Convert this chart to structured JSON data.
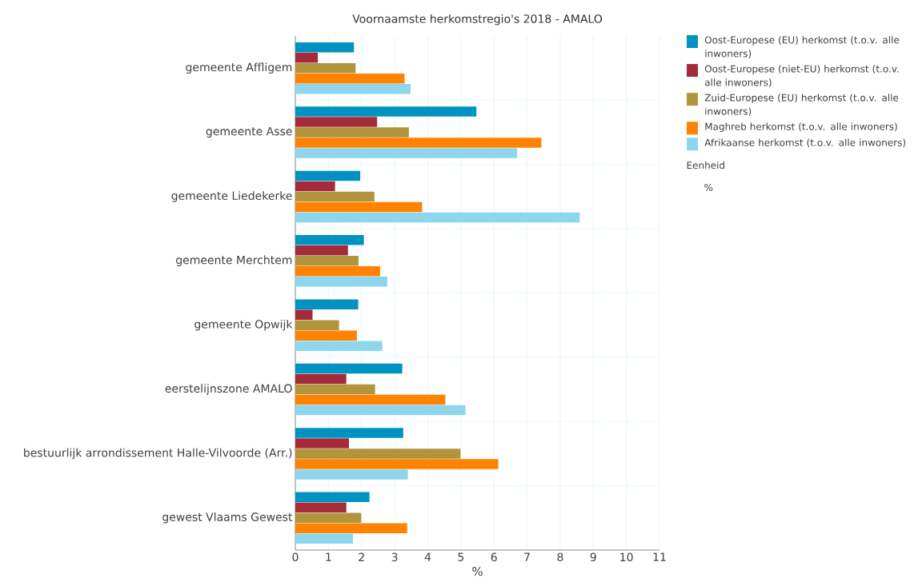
{
  "chart_data": {
    "type": "bar",
    "orientation": "horizontal",
    "title": "Voornaamste herkomstregio's 2018 - AMALO",
    "xlabel": "%",
    "categories": [
      "gemeente Affligem",
      "gemeente Asse",
      "gemeente Liedekerke",
      "gemeente Merchtem",
      "gemeente Opwijk",
      "eerstelijnszone AMALO",
      "bestuurlijk arrondissement Halle-Vilvoorde (Arr.)",
      "gewest Vlaams Gewest"
    ],
    "series": [
      {
        "name": "Oost-Europese (EU) herkomst (t.o.v. alle inwoners)",
        "color": "#0092c0",
        "values": [
          1.77,
          5.47,
          1.96,
          2.07,
          1.9,
          3.23,
          3.26,
          2.24
        ]
      },
      {
        "name": "Oost-Europese (niet-EU) herkomst (t.o.v. alle inwoners)",
        "color": "#a52a3a",
        "values": [
          0.68,
          2.47,
          1.2,
          1.59,
          0.52,
          1.54,
          1.62,
          1.54
        ]
      },
      {
        "name": "Zuid-Europese (EU) herkomst (t.o.v. alle inwoners)",
        "color": "#b0953c",
        "values": [
          1.82,
          3.43,
          2.39,
          1.91,
          1.32,
          2.41,
          4.99,
          1.99
        ]
      },
      {
        "name": "Maghreb herkomst (t.o.v. alle inwoners)",
        "color": "#ff8200",
        "values": [
          3.3,
          7.43,
          3.83,
          2.56,
          1.86,
          4.53,
          6.13,
          3.38
        ]
      },
      {
        "name": "Afrikaanse herkomst (t.o.v. alle inwoners)",
        "color": "#8dd6ee",
        "values": [
          3.48,
          6.7,
          8.59,
          2.78,
          2.63,
          5.14,
          3.4,
          1.74
        ]
      }
    ],
    "xlim": [
      0,
      11
    ],
    "xticks": [
      0,
      1,
      2,
      3,
      4,
      5,
      6,
      7,
      8,
      9,
      10,
      11
    ],
    "grid": "x",
    "legend": "top right",
    "annotations": [
      "Eenheid",
      "%"
    ]
  }
}
